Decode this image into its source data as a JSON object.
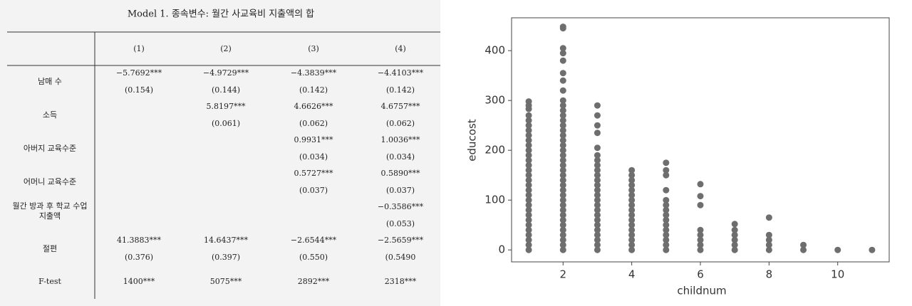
{
  "table": {
    "title": "Model 1. 종속변수: 월간 사교육비 지출액의 합",
    "headers": [
      "(1)",
      "(2)",
      "(3)",
      "(4)"
    ],
    "rows": [
      {
        "label": [
          "남매 수"
        ],
        "coef": [
          "−5.7692***",
          "−4.9729***",
          "−4.3839***",
          "−4.4103***"
        ],
        "se": [
          "(0.154)",
          "(0.144)",
          "(0.142)",
          "(0.142)"
        ]
      },
      {
        "label": [
          "소득"
        ],
        "coef": [
          null,
          "5.8197***",
          "4.6626***",
          "4.6757***"
        ],
        "se": [
          null,
          "(0.061)",
          "(0.062)",
          "(0.062)"
        ]
      },
      {
        "label": [
          "아버지 교육수준"
        ],
        "coef": [
          null,
          null,
          "0.9931***",
          "1.0036***"
        ],
        "se": [
          null,
          null,
          "(0.034)",
          "(0.034)"
        ]
      },
      {
        "label": [
          "어머니 교육수준"
        ],
        "coef": [
          null,
          null,
          "0.5727***",
          "0.5890***"
        ],
        "se": [
          null,
          null,
          "(0.037)",
          "(0.037)"
        ]
      },
      {
        "label": [
          "월간 방과 후 학교 수업",
          "지출액"
        ],
        "coef": [
          null,
          null,
          null,
          "−0.3586***"
        ],
        "se": [
          null,
          null,
          null,
          "(0.053)"
        ]
      },
      {
        "label": [
          "절편"
        ],
        "coef": [
          "41.3883***",
          "14.6437***",
          "−2.6544***",
          "−2.5659***"
        ],
        "se": [
          "(0.376)",
          "(0.397)",
          "(0.550)",
          "(0.5490"
        ]
      },
      {
        "label": [
          "F-test"
        ],
        "coef": [
          "1400***",
          "5075***",
          "2892***",
          "2318***"
        ]
      }
    ]
  },
  "chart_data": {
    "type": "scatter",
    "x_label": "childnum",
    "y_label": "educost",
    "color": "#6e6e6e",
    "xlim": [
      0.5,
      11.5
    ],
    "ylim": [
      -24,
      466
    ],
    "xticks": [
      2,
      4,
      6,
      8,
      10
    ],
    "yticks": [
      0,
      100,
      200,
      300,
      400
    ],
    "x": [
      1,
      1,
      1,
      1,
      1,
      1,
      1,
      1,
      1,
      1,
      1,
      1,
      1,
      1,
      1,
      1,
      1,
      1,
      1,
      1,
      1,
      1,
      1,
      1,
      1,
      1,
      1,
      1,
      1,
      1,
      1,
      2,
      2,
      2,
      2,
      2,
      2,
      2,
      2,
      2,
      2,
      2,
      2,
      2,
      2,
      2,
      2,
      2,
      2,
      2,
      2,
      2,
      2,
      2,
      2,
      2,
      2,
      2,
      2,
      2,
      2,
      2,
      2,
      2,
      2,
      2,
      2,
      2,
      2,
      2,
      3,
      3,
      3,
      3,
      3,
      3,
      3,
      3,
      3,
      3,
      3,
      3,
      3,
      3,
      3,
      3,
      3,
      3,
      3,
      3,
      3,
      3,
      3,
      3,
      3,
      4,
      4,
      4,
      4,
      4,
      4,
      4,
      4,
      4,
      4,
      4,
      4,
      4,
      4,
      4,
      4,
      4,
      5,
      5,
      5,
      5,
      5,
      5,
      5,
      5,
      5,
      5,
      5,
      5,
      5,
      5,
      5,
      6,
      6,
      6,
      6,
      6,
      6,
      6,
      6,
      7,
      7,
      7,
      7,
      7,
      7,
      8,
      8,
      8,
      8,
      8,
      9,
      9,
      10,
      11
    ],
    "values": [
      0,
      10,
      20,
      30,
      40,
      50,
      60,
      70,
      80,
      90,
      100,
      110,
      120,
      130,
      140,
      150,
      160,
      170,
      180,
      190,
      200,
      210,
      220,
      230,
      240,
      250,
      260,
      270,
      283,
      290,
      298,
      0,
      10,
      20,
      30,
      40,
      50,
      60,
      70,
      80,
      90,
      100,
      110,
      120,
      130,
      140,
      150,
      160,
      170,
      180,
      190,
      200,
      210,
      220,
      230,
      240,
      250,
      260,
      270,
      280,
      290,
      300,
      320,
      340,
      355,
      380,
      395,
      405,
      445,
      448,
      0,
      10,
      20,
      30,
      40,
      50,
      60,
      70,
      80,
      90,
      100,
      110,
      120,
      130,
      140,
      150,
      160,
      170,
      180,
      190,
      205,
      235,
      250,
      270,
      290,
      0,
      10,
      20,
      30,
      40,
      50,
      60,
      70,
      80,
      90,
      100,
      110,
      120,
      130,
      140,
      150,
      160,
      0,
      10,
      20,
      30,
      40,
      50,
      60,
      70,
      80,
      90,
      100,
      120,
      150,
      160,
      175,
      0,
      10,
      20,
      30,
      40,
      90,
      108,
      132,
      0,
      10,
      20,
      30,
      40,
      52,
      0,
      10,
      20,
      30,
      65,
      0,
      10,
      0,
      0
    ]
  }
}
